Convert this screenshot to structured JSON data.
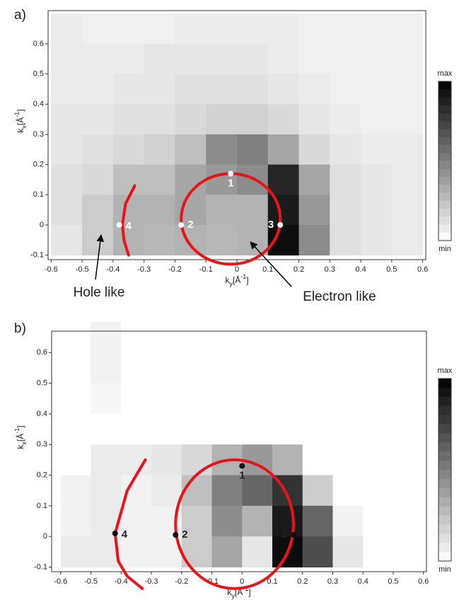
{
  "chart_data": [
    {
      "type": "heatmap",
      "panel_label": "a)",
      "x_label": [
        "k",
        "y",
        "[Å",
        "-1",
        "]"
      ],
      "y_label": [
        "k",
        "x",
        "[Å",
        "-1",
        "]"
      ],
      "xlim": [
        -0.61,
        0.61
      ],
      "ylim": [
        -0.115,
        0.71
      ],
      "xticks": [
        -0.6,
        -0.5,
        -0.4,
        -0.3,
        -0.2,
        -0.1,
        0,
        0.1,
        0.2,
        0.3,
        0.4,
        0.5,
        0.6
      ],
      "yticks": [
        -0.1,
        0,
        0.1,
        0.2,
        0.3,
        0.4,
        0.5,
        0.6
      ],
      "x": [
        -0.55,
        -0.45,
        -0.35,
        -0.25,
        -0.15,
        -0.05,
        0.05,
        0.15,
        0.25,
        0.35,
        0.45,
        0.55
      ],
      "y": [
        0.65,
        0.55,
        0.45,
        0.35,
        0.25,
        0.15,
        0.05,
        -0.05
      ],
      "z": [
        [
          8,
          6,
          6,
          6,
          8,
          8,
          8,
          8,
          6,
          6,
          6,
          6
        ],
        [
          8,
          8,
          8,
          10,
          10,
          10,
          10,
          8,
          6,
          6,
          6,
          6
        ],
        [
          8,
          8,
          10,
          10,
          12,
          12,
          12,
          10,
          8,
          6,
          6,
          6
        ],
        [
          10,
          10,
          12,
          12,
          15,
          18,
          18,
          15,
          10,
          8,
          6,
          6
        ],
        [
          10,
          12,
          15,
          18,
          25,
          45,
          50,
          35,
          15,
          10,
          8,
          8
        ],
        [
          12,
          15,
          25,
          25,
          35,
          40,
          45,
          85,
          35,
          12,
          10,
          8
        ],
        [
          12,
          20,
          30,
          30,
          35,
          30,
          30,
          90,
          40,
          12,
          10,
          8
        ],
        [
          10,
          20,
          30,
          28,
          30,
          28,
          30,
          95,
          45,
          12,
          10,
          8
        ]
      ],
      "zlim": [
        0,
        100
      ],
      "colorbar_labels": [
        "max",
        "min"
      ],
      "curve_color": "#e8141a",
      "point_color": "#ffffff",
      "point_label_color": "#ffffff",
      "circle": {
        "cx": -0.02,
        "cy": 0.02,
        "rx": 0.16,
        "ry": 0.15
      },
      "arc": {
        "x": [
          -0.33,
          -0.36,
          -0.37,
          -0.365,
          -0.35
        ],
        "y": [
          0.13,
          0.07,
          0.0,
          -0.05,
          -0.1
        ]
      },
      "points": [
        {
          "label": "1",
          "x": -0.02,
          "y": 0.17
        },
        {
          "label": "2",
          "x": -0.18,
          "y": 0.0
        },
        {
          "label": "3",
          "x": 0.14,
          "y": 0.0
        },
        {
          "label": "4",
          "x": -0.38,
          "y": 0.0
        }
      ],
      "annotations": [
        "Hole like",
        "Electron like"
      ]
    },
    {
      "type": "heatmap",
      "panel_label": "b)",
      "x_label": [
        "k",
        "y",
        "[Å",
        "-1",
        "]"
      ],
      "y_label": [
        "k",
        "x",
        "[Å",
        "-1",
        "]"
      ],
      "xlim": [
        -0.63,
        0.61
      ],
      "ylim": [
        -0.115,
        0.67
      ],
      "xticks": [
        -0.6,
        -0.5,
        -0.4,
        -0.3,
        -0.2,
        -0.1,
        0,
        0.1,
        0.2,
        0.3,
        0.4,
        0.5,
        0.6
      ],
      "yticks": [
        -0.1,
        0,
        0.1,
        0.2,
        0.3,
        0.4,
        0.5,
        0.6
      ],
      "x": [
        -0.55,
        -0.45,
        -0.35,
        -0.25,
        -0.15,
        -0.05,
        0.05,
        0.15,
        0.25,
        0.35,
        0.45,
        0.55
      ],
      "y": [
        0.65,
        0.55,
        0.45,
        0.35,
        0.25,
        0.15,
        0.05,
        -0.05
      ],
      "z": [
        [
          0,
          5,
          0,
          0,
          0,
          0,
          0,
          0,
          0,
          0,
          0,
          0
        ],
        [
          0,
          5,
          0,
          0,
          0,
          0,
          0,
          0,
          0,
          0,
          0,
          0
        ],
        [
          0,
          3,
          0,
          0,
          0,
          0,
          0,
          0,
          0,
          0,
          0,
          0
        ],
        [
          0,
          0,
          0,
          0,
          0,
          0,
          0,
          0,
          0,
          0,
          0,
          0
        ],
        [
          0,
          8,
          8,
          10,
          15,
          30,
          40,
          30,
          0,
          0,
          0,
          0
        ],
        [
          5,
          8,
          5,
          8,
          25,
          50,
          60,
          80,
          20,
          0,
          0,
          0
        ],
        [
          5,
          8,
          5,
          5,
          20,
          45,
          30,
          90,
          60,
          5,
          0,
          0
        ],
        [
          8,
          8,
          5,
          5,
          20,
          35,
          10,
          95,
          70,
          10,
          0,
          0
        ]
      ],
      "zlim": [
        0,
        100
      ],
      "colorbar_labels": [
        "max",
        "min"
      ],
      "curve_color": "#e8141a",
      "point_color": "#111111",
      "point_label_color": "#222222",
      "circle": {
        "cx": -0.025,
        "cy": 0.04,
        "rx": 0.195,
        "ry": 0.21
      },
      "arc": {
        "x": [
          -0.32,
          -0.38,
          -0.42,
          -0.41,
          -0.38,
          -0.33
        ],
        "y": [
          0.25,
          0.15,
          0.01,
          -0.08,
          -0.13,
          -0.17
        ]
      },
      "points": [
        {
          "label": "1",
          "x": 0.0,
          "y": 0.23
        },
        {
          "label": "2",
          "x": -0.22,
          "y": 0.005
        },
        {
          "label": "3",
          "x": 0.17,
          "y": 0.005
        },
        {
          "label": "4",
          "x": -0.42,
          "y": 0.01
        }
      ]
    }
  ]
}
